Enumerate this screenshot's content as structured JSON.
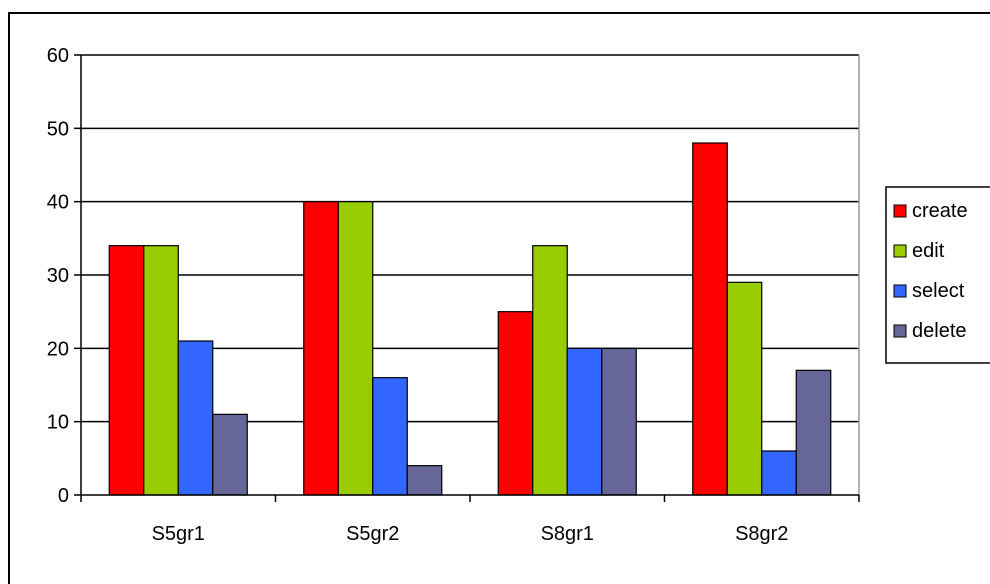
{
  "chart_data": {
    "type": "bar",
    "categories": [
      "S5gr1",
      "S5gr2",
      "S8gr1",
      "S8gr2"
    ],
    "series": [
      {
        "name": "create",
        "values": [
          34,
          40,
          25,
          48
        ],
        "color": "#ff0000"
      },
      {
        "name": "edit",
        "values": [
          34,
          40,
          34,
          29
        ],
        "color": "#99cc00"
      },
      {
        "name": "select",
        "values": [
          21,
          16,
          20,
          6
        ],
        "color": "#3366ff"
      },
      {
        "name": "delete",
        "values": [
          11,
          4,
          20,
          17
        ],
        "color": "#666699"
      }
    ],
    "title": "",
    "xlabel": "",
    "ylabel": "",
    "ylim": [
      0,
      60
    ],
    "yticks": [
      0,
      10,
      20,
      30,
      40,
      50,
      60
    ],
    "grid": true,
    "legend_position": "right"
  }
}
